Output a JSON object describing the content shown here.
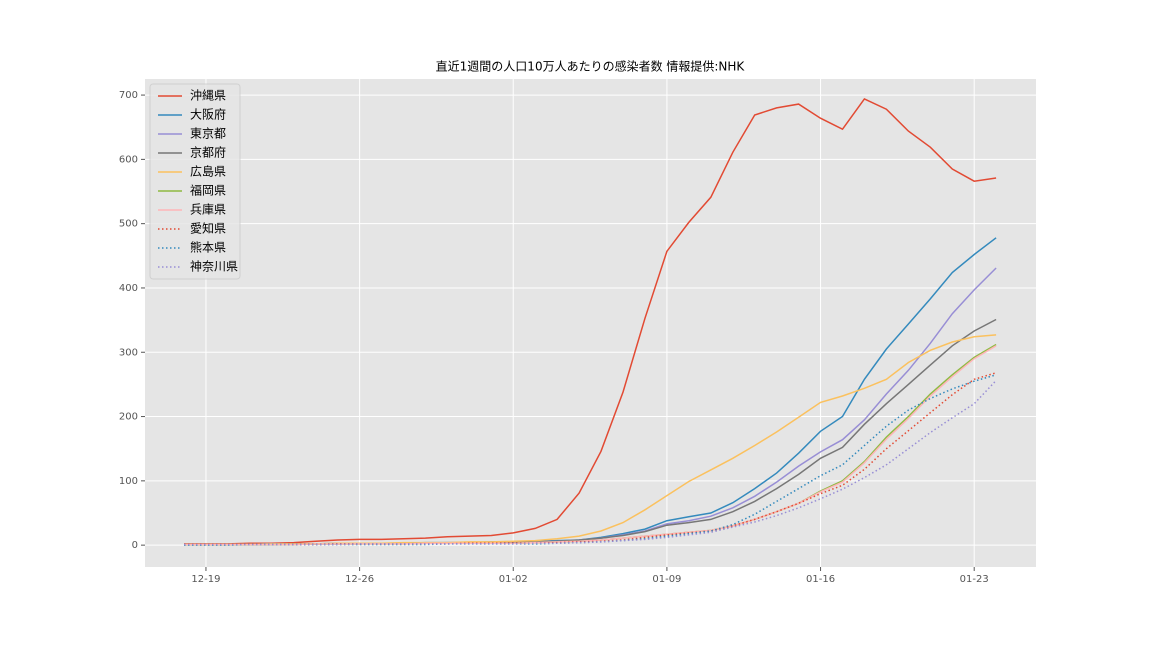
{
  "chart_data": {
    "type": "line",
    "title": "直近1週間の人口10万人あたりの感染者数 情報提供:NHK",
    "x": [
      "12-18",
      "12-19",
      "12-20",
      "12-21",
      "12-22",
      "12-23",
      "12-24",
      "12-25",
      "12-26",
      "12-27",
      "12-28",
      "12-29",
      "12-30",
      "12-31",
      "01-01",
      "01-02",
      "01-03",
      "01-04",
      "01-05",
      "01-06",
      "01-07",
      "01-08",
      "01-09",
      "01-10",
      "01-11",
      "01-12",
      "01-13",
      "01-14",
      "01-15",
      "01-16",
      "01-17",
      "01-18",
      "01-19",
      "01-20",
      "01-21",
      "01-22",
      "01-23",
      "01-24"
    ],
    "xticks": [
      "12-19",
      "12-26",
      "01-02",
      "01-09",
      "01-16",
      "01-23"
    ],
    "ylim": [
      -34,
      725
    ],
    "yticks": [
      0,
      100,
      200,
      300,
      400,
      500,
      600,
      700
    ],
    "grid": true,
    "legend": "upper left",
    "series": [
      {
        "name": "沖縄県",
        "color": "#E24A33",
        "linestyle": "solid",
        "values": [
          2,
          2,
          2,
          3,
          3,
          4,
          6,
          8,
          9,
          9,
          10,
          11,
          13,
          14,
          15,
          19,
          26,
          40,
          81,
          146,
          238,
          353,
          457,
          502,
          541,
          611,
          669,
          680,
          686,
          664,
          647,
          694,
          678,
          644,
          619,
          585,
          566,
          571
        ]
      },
      {
        "name": "大阪府",
        "color": "#348ABD",
        "linestyle": "solid",
        "values": [
          1,
          1,
          1,
          1,
          2,
          2,
          2,
          3,
          3,
          3,
          3,
          4,
          4,
          4,
          5,
          5,
          6,
          7,
          8,
          12,
          18,
          25,
          38,
          44,
          50,
          66,
          88,
          112,
          143,
          177,
          200,
          258,
          305,
          344,
          383,
          424,
          452,
          478
        ]
      },
      {
        "name": "東京都",
        "color": "#988ED5",
        "linestyle": "solid",
        "values": [
          1,
          1,
          1,
          1,
          2,
          2,
          2,
          2,
          3,
          3,
          3,
          3,
          4,
          4,
          4,
          4,
          5,
          6,
          8,
          11,
          16,
          22,
          33,
          38,
          45,
          58,
          76,
          98,
          123,
          145,
          164,
          195,
          235,
          272,
          314,
          360,
          397,
          431
        ]
      },
      {
        "name": "京都府",
        "color": "#777777",
        "linestyle": "solid",
        "values": [
          1,
          1,
          1,
          1,
          1,
          2,
          2,
          2,
          2,
          3,
          3,
          3,
          3,
          4,
          4,
          4,
          5,
          6,
          8,
          11,
          15,
          21,
          31,
          35,
          40,
          52,
          68,
          88,
          110,
          135,
          152,
          188,
          220,
          250,
          280,
          310,
          333,
          351
        ]
      },
      {
        "name": "広島県",
        "color": "#FBC15E",
        "linestyle": "solid",
        "values": [
          1,
          1,
          1,
          1,
          2,
          2,
          2,
          3,
          3,
          3,
          4,
          4,
          4,
          5,
          5,
          6,
          7,
          10,
          14,
          22,
          35,
          55,
          77,
          99,
          117,
          135,
          155,
          176,
          199,
          222,
          232,
          244,
          258,
          284,
          303,
          316,
          324,
          327
        ]
      },
      {
        "name": "福岡県",
        "color": "#8EBA42",
        "linestyle": "solid",
        "values": [
          1,
          1,
          1,
          1,
          1,
          1,
          2,
          2,
          2,
          2,
          2,
          3,
          3,
          3,
          3,
          3,
          4,
          5,
          6,
          8,
          11,
          14,
          17,
          20,
          23,
          30,
          40,
          52,
          65,
          84,
          100,
          130,
          168,
          200,
          235,
          265,
          292,
          312
        ]
      },
      {
        "name": "兵庫県",
        "color": "#FFB5B8",
        "linestyle": "solid",
        "values": [
          1,
          1,
          1,
          1,
          1,
          1,
          2,
          2,
          2,
          2,
          2,
          3,
          3,
          3,
          3,
          3,
          4,
          5,
          6,
          8,
          11,
          14,
          17,
          20,
          23,
          30,
          40,
          52,
          65,
          83,
          98,
          128,
          165,
          197,
          232,
          262,
          290,
          310
        ]
      },
      {
        "name": "愛知県",
        "color": "#E24A33",
        "linestyle": "dotted",
        "values": [
          1,
          1,
          1,
          1,
          1,
          1,
          1,
          2,
          2,
          2,
          2,
          2,
          2,
          3,
          3,
          3,
          3,
          4,
          5,
          6,
          8,
          12,
          16,
          19,
          22,
          30,
          40,
          52,
          65,
          80,
          93,
          118,
          150,
          178,
          206,
          234,
          258,
          268
        ]
      },
      {
        "name": "熊本県",
        "color": "#348ABD",
        "linestyle": "dotted",
        "values": [
          0,
          0,
          0,
          1,
          1,
          1,
          1,
          1,
          1,
          1,
          1,
          1,
          2,
          2,
          2,
          2,
          2,
          3,
          4,
          5,
          7,
          10,
          14,
          18,
          22,
          32,
          48,
          68,
          88,
          108,
          125,
          155,
          185,
          210,
          228,
          243,
          255,
          265
        ]
      },
      {
        "name": "神奈川県",
        "color": "#988ED5",
        "linestyle": "dotted",
        "values": [
          1,
          1,
          1,
          1,
          1,
          1,
          1,
          1,
          2,
          2,
          2,
          2,
          2,
          2,
          2,
          2,
          3,
          3,
          4,
          5,
          7,
          9,
          12,
          16,
          20,
          28,
          36,
          46,
          58,
          72,
          87,
          105,
          125,
          150,
          175,
          198,
          220,
          256
        ]
      }
    ]
  }
}
